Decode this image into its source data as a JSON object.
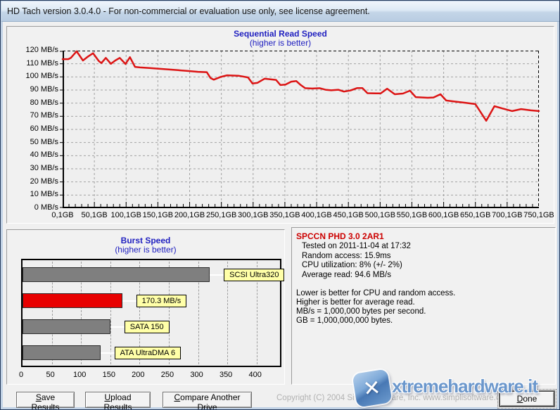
{
  "window": {
    "title": "HD Tach version 3.0.4.0  - For non-commercial or evaluation use only, see license agreement."
  },
  "info": {
    "drive_name": "SPCCN PHD 3.0 2AR1",
    "tested": "Tested on 2011-11-04 at 17:32",
    "random_access": "Random access: 15.9ms",
    "cpu_utilization": "CPU utilization: 8% (+/- 2%)",
    "average_read": "Average read: 94.6 MB/s",
    "notes": [
      "Lower is better for CPU and random access.",
      "Higher is better for average read.",
      "MB/s = 1,000,000 bytes per second.",
      "GB = 1,000,000,000 bytes."
    ]
  },
  "buttons": {
    "save": {
      "label": "Save Results",
      "mnemonic": "S"
    },
    "upload": {
      "label": "Upload Results",
      "mnemonic": "U"
    },
    "compare": {
      "label": "Compare Another Drive",
      "mnemonic": "C"
    },
    "done": {
      "label": "Done",
      "mnemonic": "D"
    }
  },
  "copyright": "Copyright (C) 2004 Simpli Software, Inc.  www.simplisoftware.com",
  "watermark": {
    "text": "xtremehardware.it"
  },
  "colors": {
    "line_red": "#dc1414",
    "bar_gray": "#7f7f7f",
    "bar_red": "#e80000",
    "label_yellow": "#ffffa8",
    "title_blue": "#2020c0",
    "drive_name_red": "#cc0000"
  },
  "chart_data": [
    {
      "type": "line",
      "title": "Sequential Read Speed",
      "subtitle": "(higher is better)",
      "x_unit": "GB",
      "y_unit": "MB/s",
      "xlim": [
        0,
        750
      ],
      "ylim": [
        0,
        120
      ],
      "grid": true,
      "line_color": "#dc1414",
      "x_tick_labels": [
        "0,1GB",
        "50,1GB",
        "100,1GB",
        "150,1GB",
        "200,1GB",
        "250,1GB",
        "300,1GB",
        "350,1GB",
        "400,1GB",
        "450,1GB",
        "500,1GB",
        "550,1GB",
        "600,1GB",
        "650,1GB",
        "700,1GB",
        "750,1GB"
      ],
      "y_tick_labels": [
        "120 MB/s",
        "110 MB/s",
        "100 MB/s",
        "90 MB/s",
        "80 MB/s",
        "70 MB/s",
        "60 MB/s",
        "50 MB/s",
        "40 MB/s",
        "30 MB/s",
        "20 MB/s",
        "10 MB/s",
        "0 MB/s"
      ],
      "points": [
        [
          0,
          113.5
        ],
        [
          9,
          113.5
        ],
        [
          13,
          114.5
        ],
        [
          22,
          119.5
        ],
        [
          32,
          112.5
        ],
        [
          40,
          115.5
        ],
        [
          48,
          118
        ],
        [
          57,
          112
        ],
        [
          61,
          110.5
        ],
        [
          68,
          114.5
        ],
        [
          76,
          110
        ],
        [
          83,
          112.5
        ],
        [
          90,
          114.5
        ],
        [
          99,
          109.8
        ],
        [
          106,
          115
        ],
        [
          114,
          107.6
        ],
        [
          122,
          107.2
        ],
        [
          137,
          106.7
        ],
        [
          152,
          106.2
        ],
        [
          167,
          105.7
        ],
        [
          182,
          105.1
        ],
        [
          197,
          104.5
        ],
        [
          213,
          103.9
        ],
        [
          227,
          103.6
        ],
        [
          233,
          99.1
        ],
        [
          238,
          97.9
        ],
        [
          249,
          100
        ],
        [
          259,
          101.2
        ],
        [
          277,
          100.9
        ],
        [
          292,
          99.6
        ],
        [
          299,
          95
        ],
        [
          307,
          95.5
        ],
        [
          318,
          98.6
        ],
        [
          327,
          98.2
        ],
        [
          336,
          97.7
        ],
        [
          343,
          93.8
        ],
        [
          351,
          94.1
        ],
        [
          360,
          96.4
        ],
        [
          368,
          96.8
        ],
        [
          375,
          93.8
        ],
        [
          382,
          91.4
        ],
        [
          393,
          91.1
        ],
        [
          405,
          91.4
        ],
        [
          414,
          90.2
        ],
        [
          423,
          89.8
        ],
        [
          434,
          90.2
        ],
        [
          443,
          88.8
        ],
        [
          453,
          89.6
        ],
        [
          464,
          91.5
        ],
        [
          472,
          91.5
        ],
        [
          480,
          87.6
        ],
        [
          493,
          87.5
        ],
        [
          501,
          87.5
        ],
        [
          511,
          91
        ],
        [
          523,
          86.8
        ],
        [
          536,
          87.3
        ],
        [
          547,
          89.5
        ],
        [
          556,
          84.6
        ],
        [
          575,
          84.1
        ],
        [
          584,
          84.3
        ],
        [
          595,
          86.8
        ],
        [
          604,
          82
        ],
        [
          615,
          81.4
        ],
        [
          634,
          80.3
        ],
        [
          650,
          79.3
        ],
        [
          667,
          66.6
        ],
        [
          680,
          77.7
        ],
        [
          692,
          76
        ],
        [
          708,
          74
        ],
        [
          722,
          75.5
        ],
        [
          737,
          74.5
        ],
        [
          750,
          74
        ]
      ]
    },
    {
      "type": "bar",
      "title": "Burst Speed",
      "subtitle": "(higher is better)",
      "orientation": "horizontal",
      "categories": [
        "SCSI Ultra320",
        "170.3 MB/s",
        "SATA 150",
        "ATA UltraDMA 6"
      ],
      "values": [
        320,
        170.3,
        150,
        133
      ],
      "bar_colors": [
        "#7f7f7f",
        "#e80000",
        "#7f7f7f",
        "#7f7f7f"
      ],
      "highlight_index": 1,
      "measured_burst_label": "170.3 MB/s",
      "x_ticks": [
        0,
        50,
        100,
        150,
        200,
        250,
        300,
        350,
        400
      ],
      "xlim": [
        0,
        440
      ],
      "grid": true
    }
  ]
}
